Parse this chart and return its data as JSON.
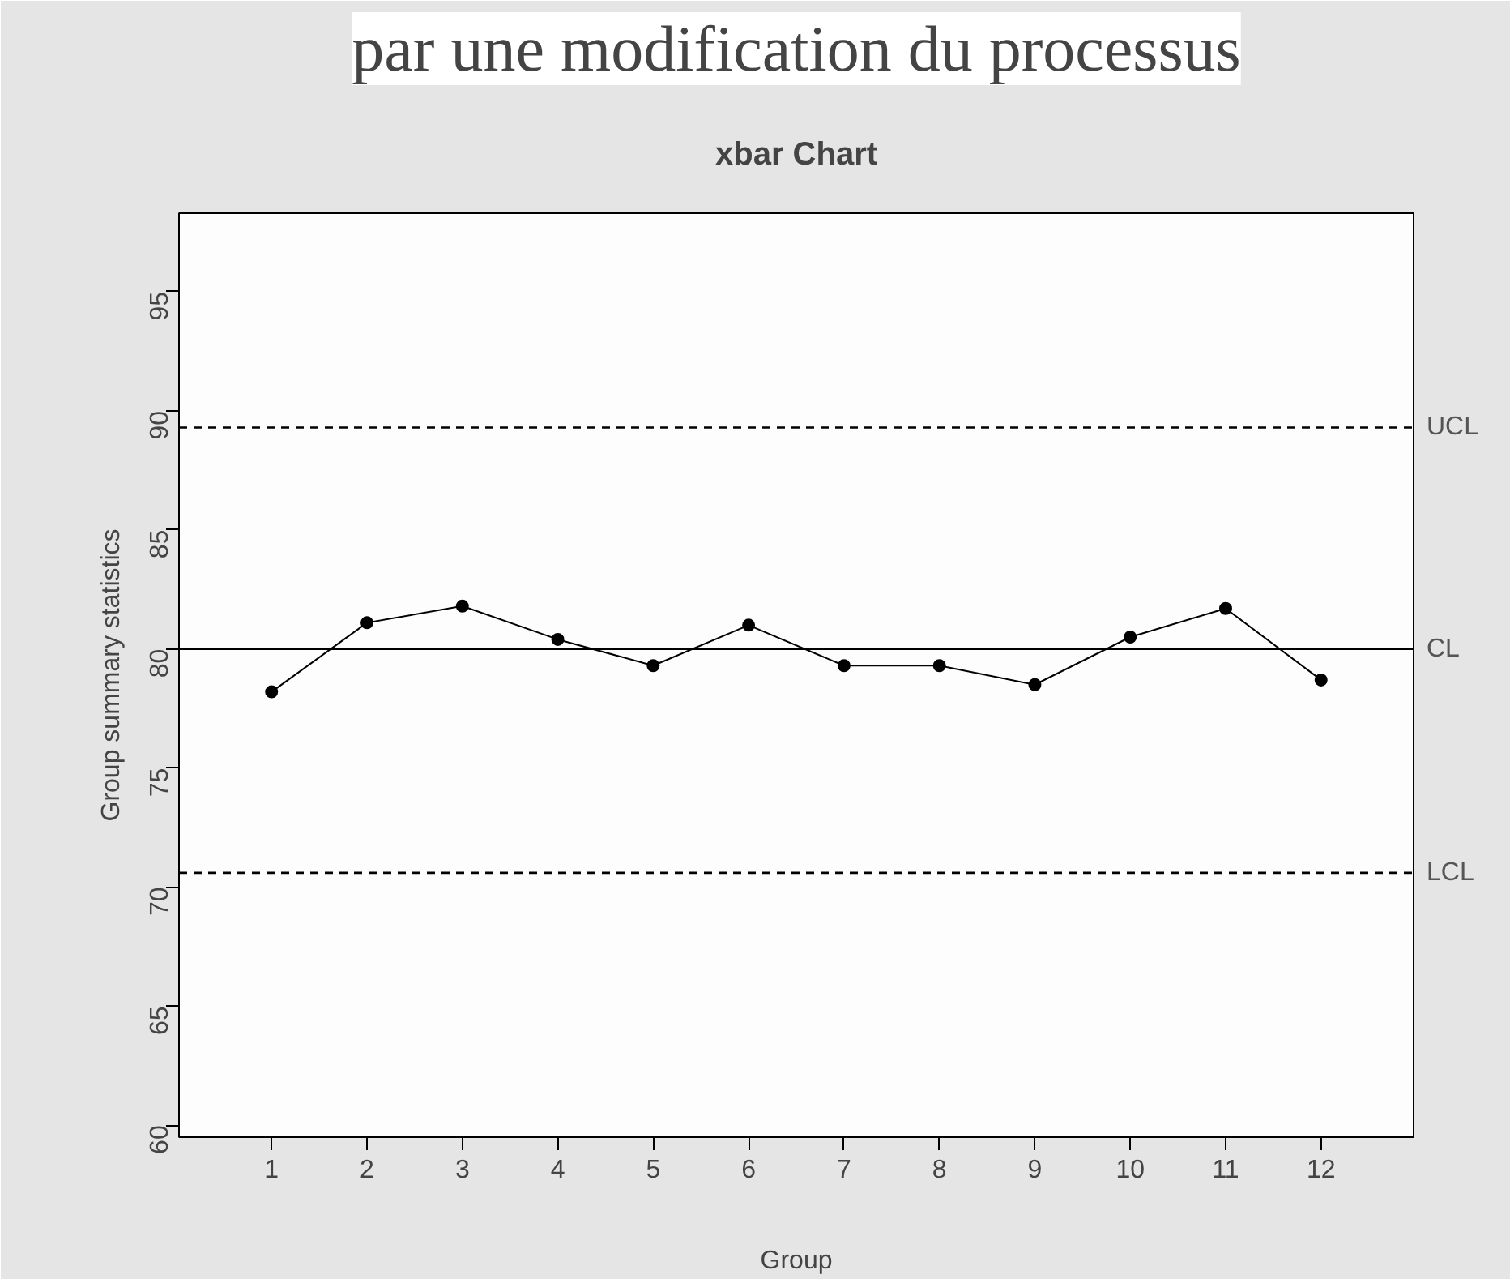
{
  "chart_data": {
    "type": "line",
    "title": "xbar Chart",
    "xlabel": "Group",
    "ylabel": "Group summary statistics",
    "annotations": [
      "par une modification du processus"
    ],
    "x": [
      1,
      2,
      3,
      4,
      5,
      6,
      7,
      8,
      9,
      10,
      11,
      12
    ],
    "series": [
      {
        "color": "#000000",
        "values": [
          78.2,
          81.1,
          81.8,
          80.4,
          79.3,
          81.0,
          79.3,
          79.3,
          78.5,
          80.5,
          81.7,
          78.7
        ]
      }
    ],
    "marker": "circle",
    "line_style": "solid",
    "grid": false,
    "xlim": [
      0.03,
      12.97
    ],
    "xticks": [
      1,
      2,
      3,
      4,
      5,
      6,
      7,
      8,
      9,
      10,
      11,
      12
    ],
    "ylim": [
      59.5,
      98.3
    ],
    "yticks": [
      60,
      65,
      70,
      75,
      80,
      85,
      90,
      95
    ],
    "ref_lines": [
      {
        "axis": "y",
        "value": 89.3,
        "label": "UCL",
        "line_style": "dashed",
        "color": "#000000"
      },
      {
        "axis": "y",
        "value": 80.0,
        "label": "CL",
        "line_style": "solid",
        "color": "#000000"
      },
      {
        "axis": "y",
        "value": 70.6,
        "label": "LCL",
        "line_style": "dashed",
        "color": "#000000"
      }
    ]
  }
}
